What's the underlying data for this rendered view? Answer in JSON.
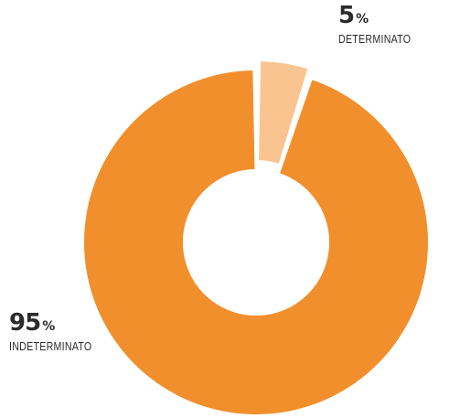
{
  "colors": {
    "primary": "#F18F2C",
    "light": "#F9C48F",
    "text": "#2B2B2B",
    "hole": "#FFFFFF"
  },
  "chart_data": {
    "type": "pie",
    "donut": true,
    "categories": [
      "DETERMINATO",
      "INDETERMINATO"
    ],
    "values": [
      5,
      95
    ],
    "value_labels": [
      "5",
      "95"
    ],
    "unit": "%",
    "slice_colors": [
      "#F9C48F",
      "#F18F2C"
    ]
  }
}
